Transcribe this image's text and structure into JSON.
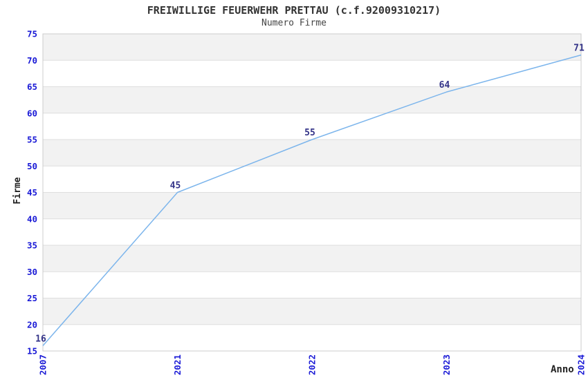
{
  "chart_data": {
    "type": "line",
    "title": "FREIWILLIGE FEUERWEHR PRETTAU (c.f.92009310217)",
    "subtitle": "Numero Firme",
    "xlabel": "Anno",
    "ylabel": "Firme",
    "categories": [
      "2007",
      "2021",
      "2022",
      "2023",
      "2024"
    ],
    "series": [
      {
        "name": "Numero Firme",
        "values": [
          16,
          45,
          55,
          64,
          71
        ]
      }
    ],
    "ylim": [
      15,
      75
    ],
    "y_tick_step": 5,
    "y_ticks": [
      15,
      20,
      25,
      30,
      35,
      40,
      45,
      50,
      55,
      60,
      65,
      70,
      75
    ],
    "grid": true,
    "legend": "none",
    "x_tick_rotation": -90,
    "alternating_bands": true,
    "colors": {
      "line": "#7CB5EC",
      "tick_label": "#1A1AD6",
      "data_label": "#333388",
      "band": "#F2F2F2",
      "grid_line": "#DEDEDE",
      "plot_border": "#CCCCCC",
      "title_text": "#333333",
      "subtitle_text": "#444444",
      "axis_title_text": "#222222",
      "background": "#FFFFFF"
    }
  }
}
